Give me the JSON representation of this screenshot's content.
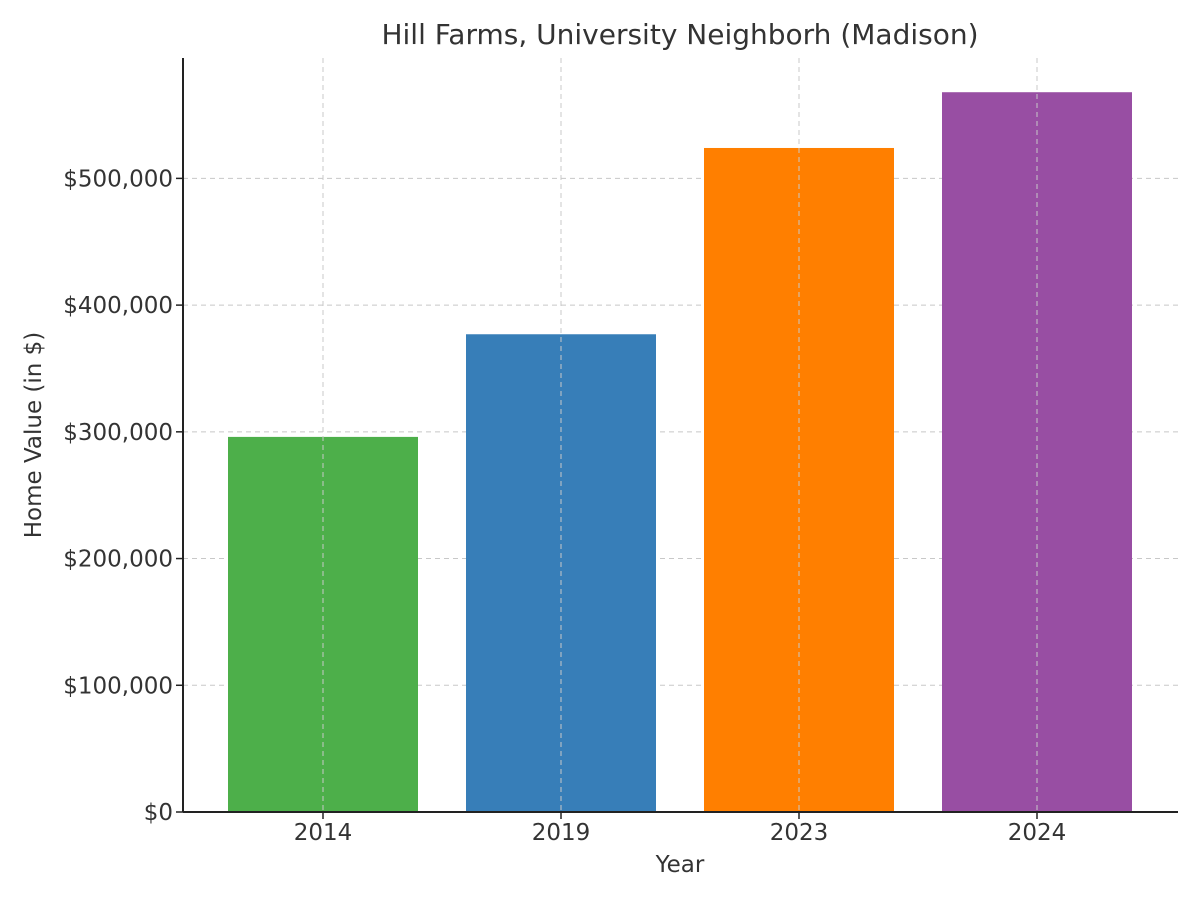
{
  "chart_data": {
    "type": "bar",
    "title": "Hill Farms, University Neighborh (Madison)",
    "xlabel": "Year",
    "ylabel": "Home Value (in $)",
    "categories": [
      "2014",
      "2019",
      "2023",
      "2024"
    ],
    "values": [
      296000,
      377000,
      524000,
      568000
    ],
    "colors": [
      "#4daf4a",
      "#377eb8",
      "#ff7f00",
      "#984ea3"
    ],
    "ylim": [
      0,
      595000
    ],
    "yticks": [
      0,
      100000,
      200000,
      300000,
      400000,
      500000
    ],
    "ytick_labels": [
      "$0",
      "$100,000",
      "$200,000",
      "$300,000",
      "$400,000",
      "$500,000"
    ],
    "grid": true
  }
}
